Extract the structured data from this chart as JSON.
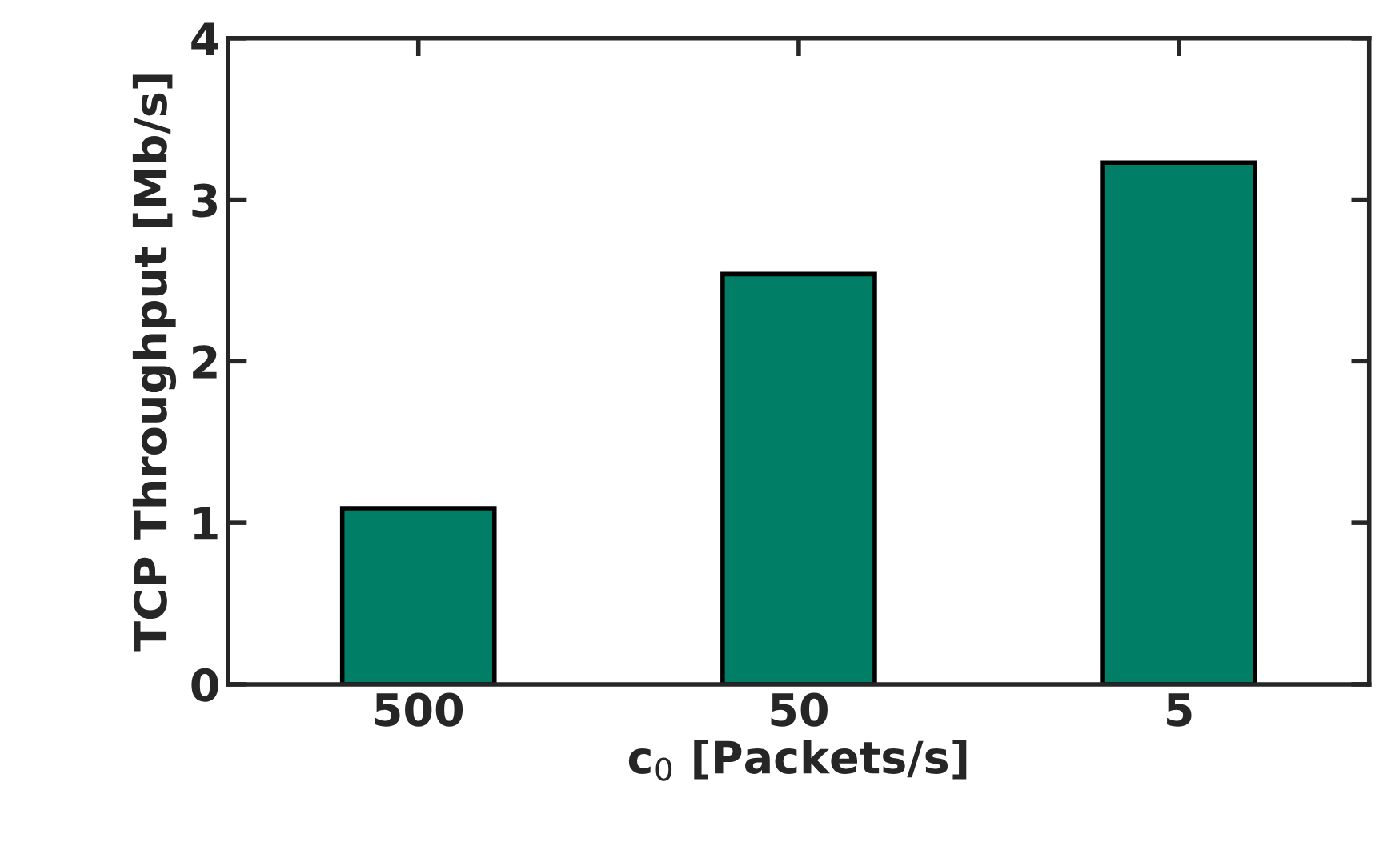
{
  "chart_data": {
    "type": "bar",
    "xlabel": "c$_{0}$ [Packets/s]",
    "ylabel": "TCP Throughput [Mb/s]",
    "categories": [
      "500",
      "50",
      "5"
    ],
    "values": [
      1.09,
      2.54,
      3.23
    ],
    "color": "#007f66",
    "ylim": [
      0,
      4
    ],
    "yticks": [
      0,
      1,
      2,
      3,
      4
    ],
    "grid": false,
    "legend": false
  }
}
